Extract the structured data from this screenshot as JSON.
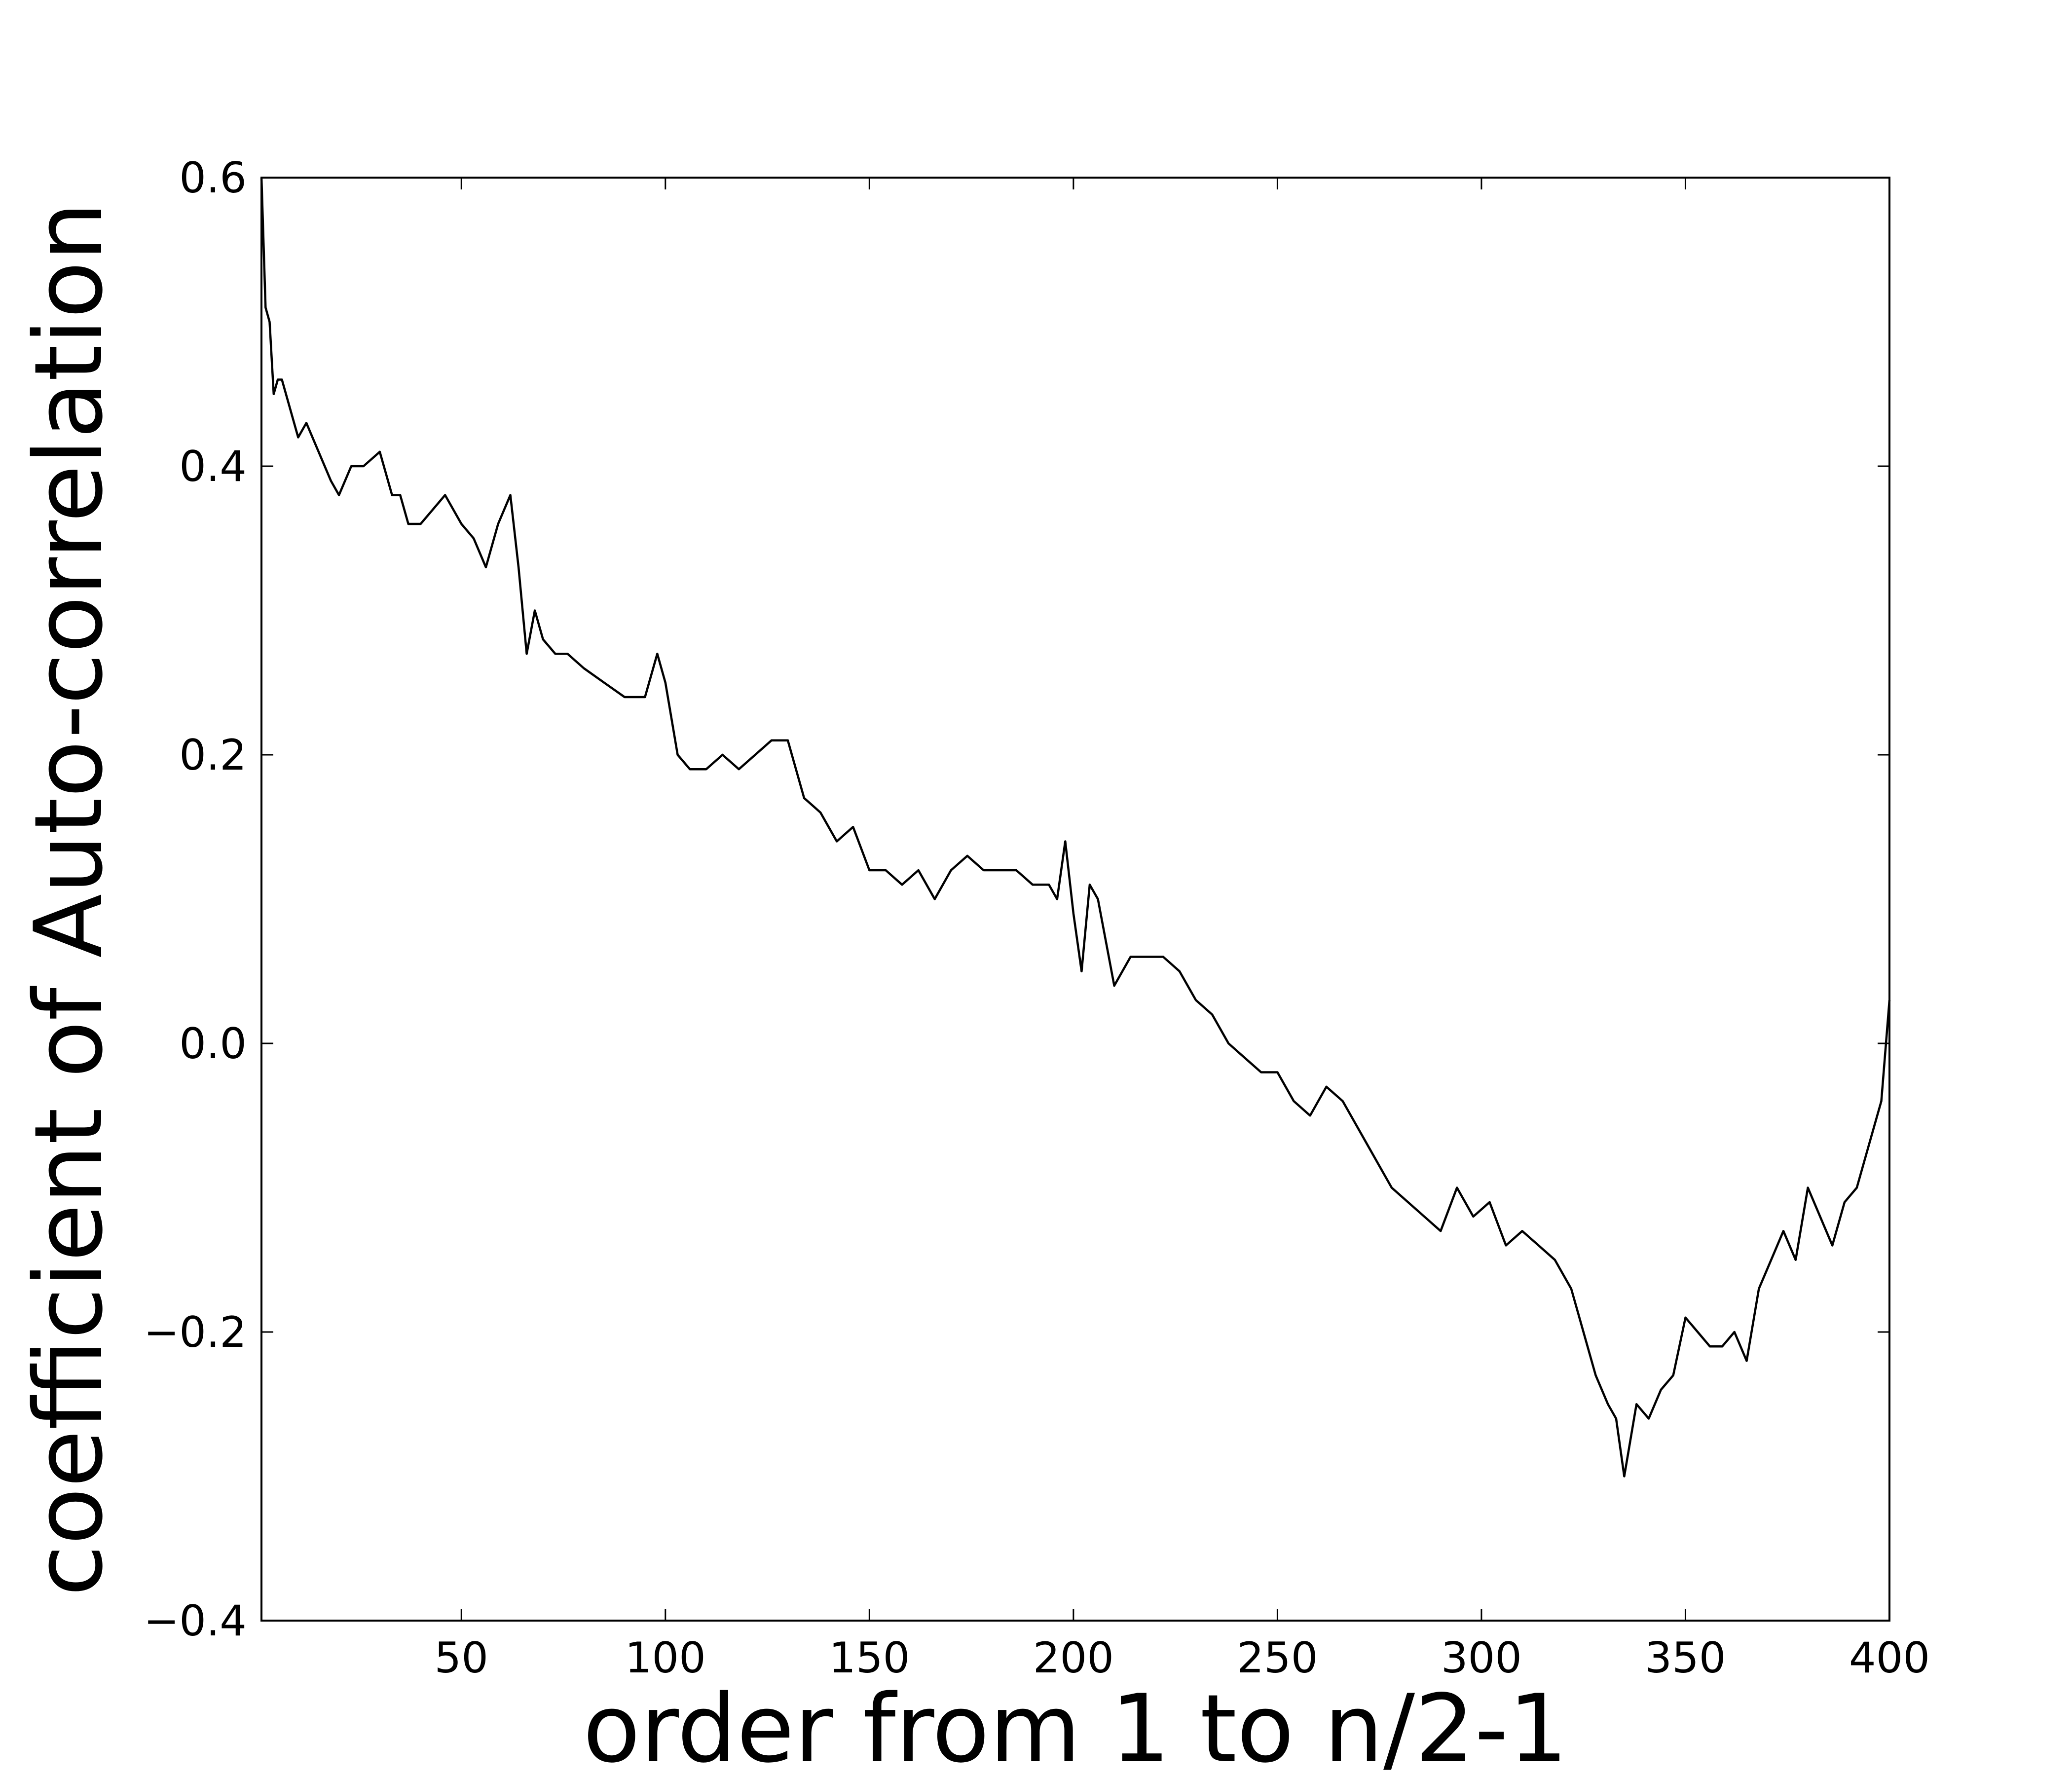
{
  "chart_data": {
    "type": "line",
    "title": "",
    "xlabel": "order from 1 to n/2-1",
    "ylabel": "coefficient of Auto-correlation",
    "xlim": [
      1,
      400
    ],
    "ylim": [
      -0.4,
      0.6
    ],
    "xticks": [
      50,
      100,
      150,
      200,
      250,
      300,
      350,
      400
    ],
    "xtick_labels": [
      "50",
      "100",
      "150",
      "200",
      "250",
      "300",
      "350",
      "400"
    ],
    "yticks": [
      -0.4,
      -0.2,
      0.0,
      0.2,
      0.4,
      0.6
    ],
    "ytick_labels": [
      "−0.4",
      "−0.2",
      "0.0",
      "0.2",
      "0.4",
      "0.6"
    ],
    "grid": false,
    "legend": "none",
    "line_color": "#000000",
    "series": [
      {
        "x": [
          1,
          2,
          3,
          4,
          5,
          6,
          8,
          10,
          12,
          15,
          18,
          20,
          23,
          26,
          30,
          33,
          35,
          37,
          40,
          43,
          46,
          50,
          53,
          56,
          59,
          62,
          64,
          66,
          68,
          70,
          73,
          76,
          80,
          85,
          90,
          95,
          98,
          100,
          103,
          106,
          110,
          114,
          118,
          122,
          126,
          130,
          134,
          138,
          142,
          146,
          150,
          154,
          158,
          162,
          166,
          170,
          174,
          178,
          182,
          186,
          190,
          194,
          196,
          198,
          200,
          202,
          204,
          206,
          210,
          214,
          218,
          222,
          226,
          230,
          234,
          238,
          242,
          246,
          250,
          254,
          258,
          262,
          266,
          270,
          274,
          278,
          282,
          286,
          290,
          294,
          298,
          302,
          306,
          310,
          314,
          318,
          322,
          325,
          328,
          331,
          333,
          335,
          338,
          341,
          344,
          347,
          350,
          353,
          356,
          359,
          362,
          365,
          368,
          371,
          374,
          377,
          380,
          383,
          386,
          389,
          392,
          395,
          398,
          400
        ],
        "y": [
          0.6,
          0.51,
          0.5,
          0.45,
          0.46,
          0.46,
          0.44,
          0.42,
          0.43,
          0.41,
          0.39,
          0.38,
          0.4,
          0.4,
          0.41,
          0.38,
          0.38,
          0.36,
          0.36,
          0.37,
          0.38,
          0.36,
          0.35,
          0.33,
          0.36,
          0.38,
          0.33,
          0.27,
          0.3,
          0.28,
          0.27,
          0.27,
          0.26,
          0.25,
          0.24,
          0.24,
          0.27,
          0.25,
          0.2,
          0.19,
          0.19,
          0.2,
          0.19,
          0.2,
          0.21,
          0.21,
          0.17,
          0.16,
          0.14,
          0.15,
          0.12,
          0.12,
          0.11,
          0.12,
          0.1,
          0.12,
          0.13,
          0.12,
          0.12,
          0.12,
          0.11,
          0.11,
          0.1,
          0.14,
          0.09,
          0.05,
          0.11,
          0.1,
          0.04,
          0.06,
          0.06,
          0.06,
          0.05,
          0.03,
          0.02,
          0.0,
          -0.01,
          -0.02,
          -0.02,
          -0.04,
          -0.05,
          -0.03,
          -0.04,
          -0.06,
          -0.08,
          -0.1,
          -0.11,
          -0.12,
          -0.13,
          -0.1,
          -0.12,
          -0.11,
          -0.14,
          -0.13,
          -0.14,
          -0.15,
          -0.17,
          -0.2,
          -0.23,
          -0.25,
          -0.26,
          -0.3,
          -0.25,
          -0.26,
          -0.24,
          -0.23,
          -0.19,
          -0.2,
          -0.21,
          -0.21,
          -0.2,
          -0.22,
          -0.17,
          -0.15,
          -0.13,
          -0.15,
          -0.1,
          -0.12,
          -0.14,
          -0.11,
          -0.1,
          -0.07,
          -0.04,
          0.03
        ]
      }
    ]
  }
}
